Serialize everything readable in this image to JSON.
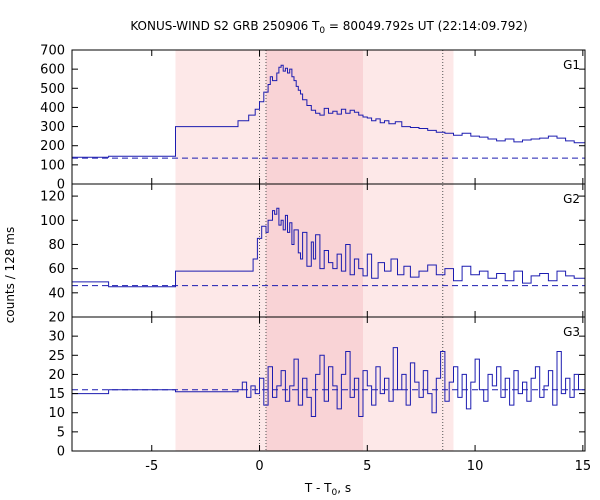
{
  "chart_data": {
    "type": "line",
    "title": {
      "prefix": "KONUS-WIND S2 GRB 250906 T",
      "sub": "0",
      "suffix": " = 80049.792s UT (22:14:09.792)"
    },
    "xlabel": {
      "prefix": "T - T",
      "sub": "0",
      "suffix": ", s"
    },
    "ylabel": "counts / 128 ms",
    "xlim": [
      -8.7,
      15.1
    ],
    "xticks": [
      -5,
      0,
      5,
      10,
      15
    ],
    "colors": {
      "line": "#1c1cb0",
      "band_light": "#fde8e8",
      "band_dark": "#f9d3d6",
      "vline": "#555555"
    },
    "shaded_regions": [
      {
        "x0": -3.9,
        "x1": 9.0,
        "shade": "light"
      },
      {
        "x0": 0.3,
        "x1": 4.8,
        "shade": "dark"
      }
    ],
    "vlines": [
      0.0,
      0.3,
      8.5
    ],
    "panels": [
      {
        "name": "G1",
        "ylim": [
          0,
          700
        ],
        "yticks": [
          0,
          100,
          200,
          300,
          400,
          500,
          600,
          700
        ],
        "background": 135,
        "series": [
          [
            -8.7,
            140
          ],
          [
            -7.0,
            145
          ],
          [
            -3.9,
            300
          ],
          [
            -1.0,
            330
          ],
          [
            -0.5,
            360
          ],
          [
            -0.2,
            390
          ],
          [
            0.0,
            430
          ],
          [
            0.2,
            480
          ],
          [
            0.4,
            520
          ],
          [
            0.5,
            560
          ],
          [
            0.6,
            540
          ],
          [
            0.8,
            580
          ],
          [
            0.9,
            610
          ],
          [
            1.0,
            620
          ],
          [
            1.1,
            590
          ],
          [
            1.2,
            605
          ],
          [
            1.3,
            580
          ],
          [
            1.4,
            600
          ],
          [
            1.5,
            560
          ],
          [
            1.6,
            540
          ],
          [
            1.7,
            510
          ],
          [
            1.8,
            490
          ],
          [
            1.9,
            470
          ],
          [
            2.0,
            440
          ],
          [
            2.2,
            410
          ],
          [
            2.4,
            385
          ],
          [
            2.6,
            370
          ],
          [
            2.8,
            360
          ],
          [
            3.0,
            395
          ],
          [
            3.2,
            370
          ],
          [
            3.4,
            380
          ],
          [
            3.6,
            365
          ],
          [
            3.8,
            390
          ],
          [
            4.0,
            370
          ],
          [
            4.2,
            385
          ],
          [
            4.4,
            375
          ],
          [
            4.6,
            360
          ],
          [
            4.8,
            350
          ],
          [
            5.0,
            345
          ],
          [
            5.2,
            330
          ],
          [
            5.4,
            340
          ],
          [
            5.6,
            320
          ],
          [
            5.8,
            330
          ],
          [
            6.0,
            315
          ],
          [
            6.3,
            325
          ],
          [
            6.6,
            300
          ],
          [
            7.0,
            295
          ],
          [
            7.4,
            290
          ],
          [
            7.8,
            280
          ],
          [
            8.2,
            270
          ],
          [
            8.6,
            265
          ],
          [
            9.0,
            255
          ],
          [
            9.4,
            265
          ],
          [
            9.8,
            250
          ],
          [
            10.2,
            245
          ],
          [
            10.6,
            235
          ],
          [
            11.0,
            225
          ],
          [
            11.4,
            235
          ],
          [
            11.8,
            220
          ],
          [
            12.2,
            230
          ],
          [
            12.6,
            235
          ],
          [
            13.0,
            240
          ],
          [
            13.4,
            250
          ],
          [
            13.8,
            240
          ],
          [
            14.2,
            225
          ],
          [
            14.6,
            215
          ],
          [
            15.1,
            205
          ]
        ]
      },
      {
        "name": "G2",
        "ylim": [
          20,
          130
        ],
        "yticks": [
          20,
          40,
          60,
          80,
          100,
          120
        ],
        "background": 46,
        "series": [
          [
            -8.7,
            49
          ],
          [
            -7.0,
            45
          ],
          [
            -3.9,
            58
          ],
          [
            -1.0,
            58
          ],
          [
            -0.3,
            68
          ],
          [
            -0.1,
            85
          ],
          [
            0.1,
            95
          ],
          [
            0.3,
            90
          ],
          [
            0.4,
            100
          ],
          [
            0.6,
            108
          ],
          [
            0.7,
            105
          ],
          [
            0.8,
            110
          ],
          [
            0.9,
            96
          ],
          [
            1.0,
            100
          ],
          [
            1.1,
            92
          ],
          [
            1.2,
            104
          ],
          [
            1.3,
            90
          ],
          [
            1.4,
            98
          ],
          [
            1.5,
            80
          ],
          [
            1.6,
            92
          ],
          [
            1.8,
            73
          ],
          [
            1.9,
            68
          ],
          [
            2.0,
            90
          ],
          [
            2.2,
            62
          ],
          [
            2.4,
            82
          ],
          [
            2.5,
            68
          ],
          [
            2.6,
            88
          ],
          [
            2.8,
            60
          ],
          [
            3.0,
            75
          ],
          [
            3.2,
            65
          ],
          [
            3.4,
            60
          ],
          [
            3.6,
            72
          ],
          [
            3.8,
            58
          ],
          [
            4.0,
            80
          ],
          [
            4.2,
            55
          ],
          [
            4.4,
            68
          ],
          [
            4.6,
            60
          ],
          [
            4.8,
            54
          ],
          [
            5.0,
            72
          ],
          [
            5.2,
            52
          ],
          [
            5.5,
            65
          ],
          [
            5.8,
            58
          ],
          [
            6.1,
            68
          ],
          [
            6.4,
            55
          ],
          [
            6.7,
            62
          ],
          [
            7.0,
            53
          ],
          [
            7.4,
            58
          ],
          [
            7.8,
            63
          ],
          [
            8.2,
            55
          ],
          [
            8.6,
            60
          ],
          [
            9.0,
            50
          ],
          [
            9.4,
            62
          ],
          [
            9.8,
            55
          ],
          [
            10.2,
            58
          ],
          [
            10.6,
            52
          ],
          [
            11.0,
            56
          ],
          [
            11.4,
            50
          ],
          [
            11.8,
            58
          ],
          [
            12.2,
            48
          ],
          [
            12.6,
            54
          ],
          [
            13.0,
            56
          ],
          [
            13.4,
            50
          ],
          [
            13.8,
            58
          ],
          [
            14.2,
            54
          ],
          [
            14.6,
            52
          ],
          [
            15.1,
            50
          ]
        ]
      },
      {
        "name": "G3",
        "ylim": [
          0,
          35
        ],
        "yticks": [
          0,
          5,
          10,
          15,
          20,
          25,
          30
        ],
        "background": 16,
        "series": [
          [
            -8.7,
            15
          ],
          [
            -7.0,
            16
          ],
          [
            -3.9,
            15.5
          ],
          [
            -1.0,
            16
          ],
          [
            -0.8,
            18
          ],
          [
            -0.6,
            14
          ],
          [
            -0.4,
            17
          ],
          [
            -0.2,
            15
          ],
          [
            0.0,
            19
          ],
          [
            0.2,
            12
          ],
          [
            0.4,
            22
          ],
          [
            0.6,
            14
          ],
          [
            0.8,
            17
          ],
          [
            1.0,
            21
          ],
          [
            1.2,
            13
          ],
          [
            1.4,
            17
          ],
          [
            1.6,
            24
          ],
          [
            1.8,
            12
          ],
          [
            2.0,
            19
          ],
          [
            2.2,
            14
          ],
          [
            2.4,
            9
          ],
          [
            2.6,
            20
          ],
          [
            2.8,
            25
          ],
          [
            3.0,
            13
          ],
          [
            3.2,
            22
          ],
          [
            3.4,
            17
          ],
          [
            3.6,
            11
          ],
          [
            3.8,
            20
          ],
          [
            4.0,
            26
          ],
          [
            4.2,
            14
          ],
          [
            4.4,
            19
          ],
          [
            4.6,
            9
          ],
          [
            4.8,
            21
          ],
          [
            5.0,
            17
          ],
          [
            5.2,
            12
          ],
          [
            5.4,
            22
          ],
          [
            5.6,
            15
          ],
          [
            5.8,
            19
          ],
          [
            6.0,
            13
          ],
          [
            6.2,
            27
          ],
          [
            6.4,
            16
          ],
          [
            6.6,
            20
          ],
          [
            6.8,
            12
          ],
          [
            7.0,
            23
          ],
          [
            7.2,
            18
          ],
          [
            7.4,
            14
          ],
          [
            7.6,
            21
          ],
          [
            7.8,
            15
          ],
          [
            8.0,
            10
          ],
          [
            8.2,
            19
          ],
          [
            8.4,
            26
          ],
          [
            8.6,
            13
          ],
          [
            8.8,
            18
          ],
          [
            9.0,
            22
          ],
          [
            9.2,
            14
          ],
          [
            9.4,
            20
          ],
          [
            9.6,
            11
          ],
          [
            9.8,
            18
          ],
          [
            10.0,
            24
          ],
          [
            10.2,
            16
          ],
          [
            10.4,
            13
          ],
          [
            10.6,
            20
          ],
          [
            10.8,
            17
          ],
          [
            11.0,
            22
          ],
          [
            11.2,
            14
          ],
          [
            11.4,
            19
          ],
          [
            11.6,
            12
          ],
          [
            11.8,
            21
          ],
          [
            12.0,
            15
          ],
          [
            12.2,
            18
          ],
          [
            12.4,
            13
          ],
          [
            12.6,
            19
          ],
          [
            12.8,
            22
          ],
          [
            13.0,
            14
          ],
          [
            13.2,
            17
          ],
          [
            13.4,
            21
          ],
          [
            13.6,
            12
          ],
          [
            13.8,
            26
          ],
          [
            14.0,
            15
          ],
          [
            14.2,
            19
          ],
          [
            14.4,
            14
          ],
          [
            14.6,
            20
          ],
          [
            14.8,
            16
          ],
          [
            15.1,
            17
          ]
        ]
      }
    ]
  }
}
